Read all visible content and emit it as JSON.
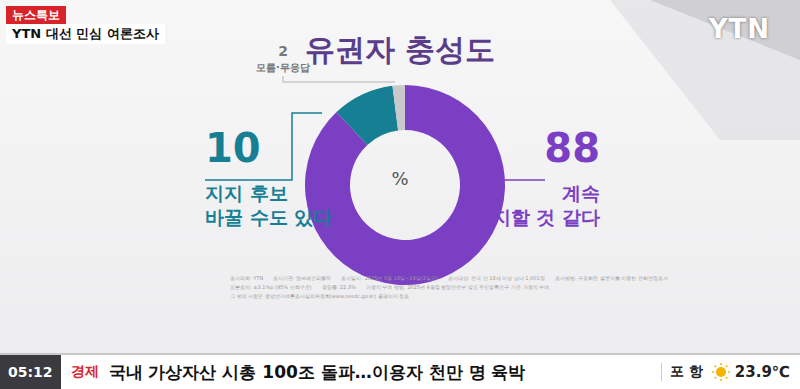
{
  "header": {
    "badge": "뉴스특보",
    "program": "YTN 대선 민심 여론조사",
    "logo": "YTN"
  },
  "chart_data": {
    "type": "donut",
    "title": "유권자 충성도",
    "center_label": "%",
    "categories": [
      "계속\n지지할 것 같다",
      "지지 후보\n바꿀 수도 있다",
      "모름·무응답"
    ],
    "values": [
      88,
      10,
      2
    ],
    "colors": [
      "#7b3fc4",
      "#167f94",
      "#c9c9cc"
    ],
    "data_labels": true
  },
  "footnote": [
    [
      "조사의뢰: YTN",
      "조사기관: 엠브레인퍼블릭",
      "조사일시: 2025년 5월 18일~19일(2일간)",
      "조사대상: 전국 만 18세 이상 남녀 1,001명",
      "조사방법: 구조화된 설문지를 이용한 전화면접조사"
    ],
    [
      "표본오차: ±3.1%p (95% 신뢰수준)",
      "응답률: 22.3%",
      "가중치 부여 방법: 2025년 4월말 행정안전부 발표 주민등록인구 기준 가중치 부여"
    ],
    [
      "그 밖의 사항은 중앙선거여론조사심의위원회(www.nesdc.go.kr) 홈페이지 참조"
    ]
  ],
  "ticker": {
    "time": "05:12",
    "section": "경제",
    "headline": "국내 가상자산 시총 100조 돌파…이용자 천만 명 육박",
    "location": "포 항",
    "temperature": "23.9℃"
  }
}
